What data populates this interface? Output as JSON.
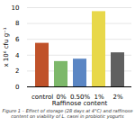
{
  "chart_data": {
    "type": "bar",
    "categories": [
      "control",
      "0%",
      "0.50%",
      "1%",
      "2%"
    ],
    "values": [
      5.5,
      3.2,
      3.5,
      9.5,
      4.3
    ],
    "colors": [
      "#c0522a",
      "#7db86a",
      "#5b86c4",
      "#e8d84a",
      "#606060"
    ],
    "xlabel": "Raffinose content",
    "ylabel": "x 10⁶ cfu g⁻¹",
    "ylim": [
      0,
      10
    ],
    "yticks": [
      0,
      2,
      4,
      6,
      8,
      10
    ],
    "grid": true,
    "caption": [
      "Figure 1 – Effect of storage (28 days at 4°C) and raffinose",
      "content on viability of L. casei in probiotic yogurts"
    ]
  }
}
